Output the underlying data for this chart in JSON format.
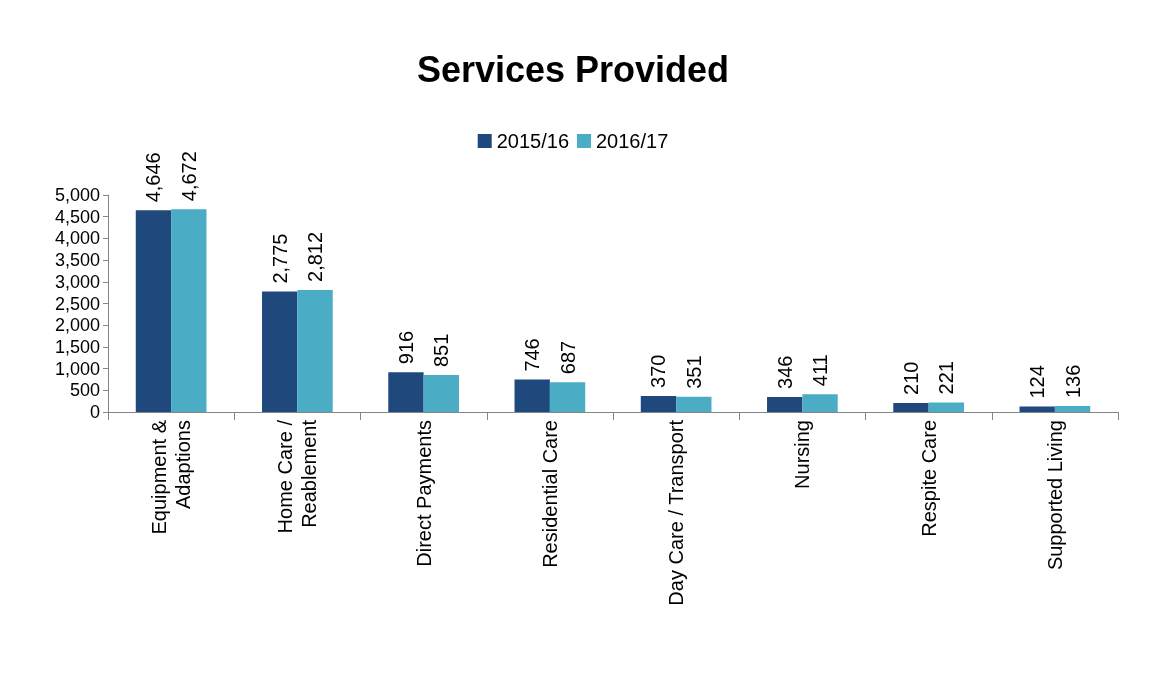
{
  "chart_data": {
    "type": "bar",
    "title": "Services Provided",
    "categories": [
      "Equipment &\nAdaptions",
      "Home Care /\nReablement",
      "Direct Payments",
      "Residential Care",
      "Day Care / Transport",
      "Nursing",
      "Respite Care",
      "Supported Living"
    ],
    "series": [
      {
        "name": "2015/16",
        "color": "#1f497d",
        "values": [
          4646,
          2775,
          916,
          746,
          370,
          346,
          210,
          124
        ],
        "value_labels": [
          "4,646",
          "2,775",
          "916",
          "746",
          "370",
          "346",
          "210",
          "124"
        ]
      },
      {
        "name": "2016/17",
        "color": "#4bacc6",
        "values": [
          4672,
          2812,
          851,
          687,
          351,
          411,
          221,
          136
        ],
        "value_labels": [
          "4,672",
          "2,812",
          "851",
          "687",
          "351",
          "411",
          "221",
          "136"
        ]
      }
    ],
    "ylim": [
      0,
      5000
    ],
    "yticks": [
      0,
      500,
      {
        "value": 1000,
        "label": "1,000"
      },
      {
        "value": 1500,
        "label": "1,500"
      },
      {
        "value": 2000,
        "label": "2,000"
      },
      {
        "value": 2500,
        "label": "2,500"
      },
      {
        "value": 3000,
        "label": "3,000"
      },
      {
        "value": 3500,
        "label": "3,500"
      },
      {
        "value": 4000,
        "label": "4,000"
      },
      {
        "value": 4500,
        "label": "4,500"
      },
      {
        "value": 5000,
        "label": "5,000"
      }
    ],
    "grid": false,
    "legend": "top"
  }
}
